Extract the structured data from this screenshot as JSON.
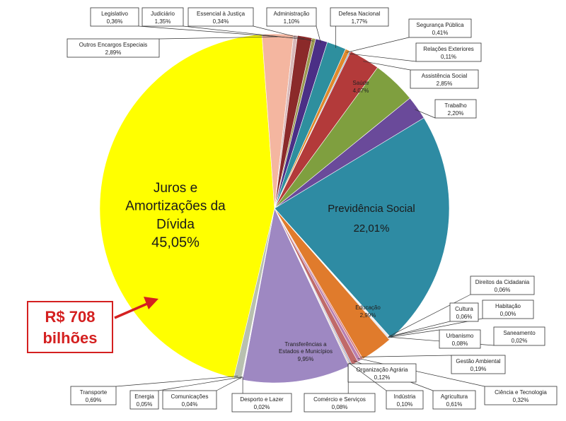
{
  "chart_data": {
    "type": "pie",
    "slices": [
      {
        "label": "Juros e Amortizações da Dívida",
        "text": "45,05%",
        "value": 45.05,
        "color": "#ffff00"
      },
      {
        "label": "Outros Encargos Especiais",
        "text": "2,89%",
        "value": 2.89,
        "color": "#f4b6a0"
      },
      {
        "label": "Legislativo",
        "text": "0,36%",
        "value": 0.36,
        "color": "#d9b8b8"
      },
      {
        "label": "Judiciário",
        "text": "1,35%",
        "value": 1.35,
        "color": "#8b2a2a"
      },
      {
        "label": "Essencial à Justiça",
        "text": "0,34%",
        "value": 0.34,
        "color": "#9a9a50"
      },
      {
        "label": "Administração",
        "text": "1,10%",
        "value": 1.1,
        "color": "#4b2f86"
      },
      {
        "label": "Defesa Nacional",
        "text": "1,77%",
        "value": 1.77,
        "color": "#2e8f9e"
      },
      {
        "label": "Segurança Pública",
        "text": "0,41%",
        "value": 0.41,
        "color": "#e0892c"
      },
      {
        "label": "Relações Exteriores",
        "text": "0,11%",
        "value": 0.11,
        "color": "#8aa6c8"
      },
      {
        "label": "Assistência Social",
        "text": "2,85%",
        "value": 2.85,
        "color": "#b33a3a"
      },
      {
        "label": "Saúde",
        "text": "4,07%",
        "value": 4.07,
        "color": "#7f9f3f"
      },
      {
        "label": "Trabalho",
        "text": "2,20%",
        "value": 2.2,
        "color": "#6a4a9a"
      },
      {
        "label": "Previdência Social",
        "text": "22,01%",
        "value": 22.01,
        "color": "#2e8ba3"
      },
      {
        "label": "Direitos da Cidadania",
        "text": "0,06%",
        "value": 0.06,
        "color": "#c0c0c0"
      },
      {
        "label": "Habitação",
        "text": "0,00%",
        "value": 0.0,
        "color": "#c0c0c0"
      },
      {
        "label": "Cultura",
        "text": "0,06%",
        "value": 0.06,
        "color": "#a0a0d0"
      },
      {
        "label": "Saneamento",
        "text": "0,02%",
        "value": 0.02,
        "color": "#c0c0c0"
      },
      {
        "label": "Urbanismo",
        "text": "0,08%",
        "value": 0.08,
        "color": "#c0c0c0"
      },
      {
        "label": "Educação",
        "text": "2,99%",
        "value": 2.99,
        "color": "#e07b2c"
      },
      {
        "label": "Gestão Ambiental",
        "text": "0,19%",
        "value": 0.19,
        "color": "#d98080"
      },
      {
        "label": "Ciência e Tecnologia",
        "text": "0,32%",
        "value": 0.32,
        "color": "#b87fb0"
      },
      {
        "label": "Agricultura",
        "text": "0,61%",
        "value": 0.61,
        "color": "#c06a6a"
      },
      {
        "label": "Organização Agrária",
        "text": "0,12%",
        "value": 0.12,
        "color": "#8fa0c0"
      },
      {
        "label": "Indústria",
        "text": "0,10%",
        "value": 0.1,
        "color": "#d0a0a0"
      },
      {
        "label": "Comércio e Serviços",
        "text": "0,08%",
        "value": 0.08,
        "color": "#c0c0c0"
      },
      {
        "label": "Transferências a Estados e Municípios",
        "text": "9,95%",
        "value": 9.95,
        "color": "#9e88c2"
      },
      {
        "label": "Desporto e Lazer",
        "text": "0,02%",
        "value": 0.02,
        "color": "#c0c0c0"
      },
      {
        "label": "Comunicações",
        "text": "0,04%",
        "value": 0.04,
        "color": "#c0c0c0"
      },
      {
        "label": "Energia",
        "text": "0,05%",
        "value": 0.05,
        "color": "#c0c0c0"
      },
      {
        "label": "Transporte",
        "text": "0,69%",
        "value": 0.69,
        "color": "#b8c0b0"
      }
    ]
  },
  "callout": {
    "line1": "R$ 708",
    "line2": "bilhões",
    "color": "#d42020"
  }
}
